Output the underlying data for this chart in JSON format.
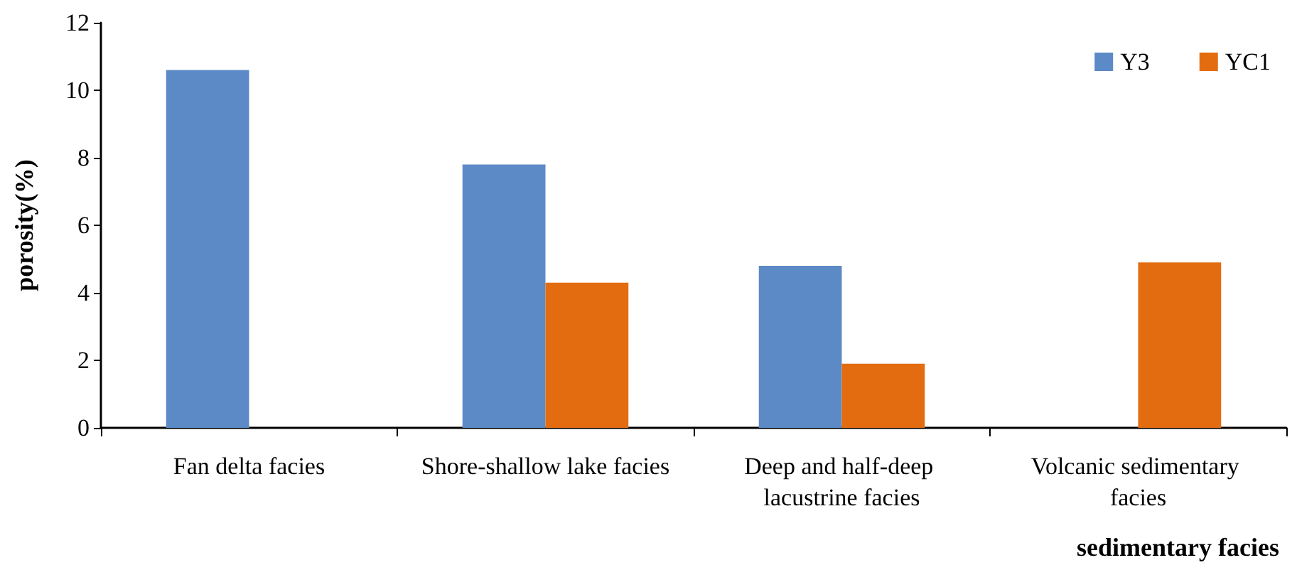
{
  "chart_data": {
    "type": "bar",
    "xlabel": "sedimentary facies",
    "ylabel": "porosity(%)",
    "categories": [
      "Fan delta facies",
      "Shore-shallow lake facies",
      "Deep and half-deep lacustrine facies",
      "Volcanic sedimentary facies"
    ],
    "series": [
      {
        "name": "Y3",
        "color": "#5b8ac6",
        "values": [
          10.6,
          7.8,
          4.8,
          null
        ]
      },
      {
        "name": "YC1",
        "color": "#e36c10",
        "values": [
          null,
          4.3,
          1.9,
          4.9
        ]
      }
    ],
    "ylim": [
      0,
      12
    ],
    "yticks": [
      0,
      2,
      4,
      6,
      8,
      10,
      12
    ],
    "grid": false,
    "legend": "top right"
  }
}
